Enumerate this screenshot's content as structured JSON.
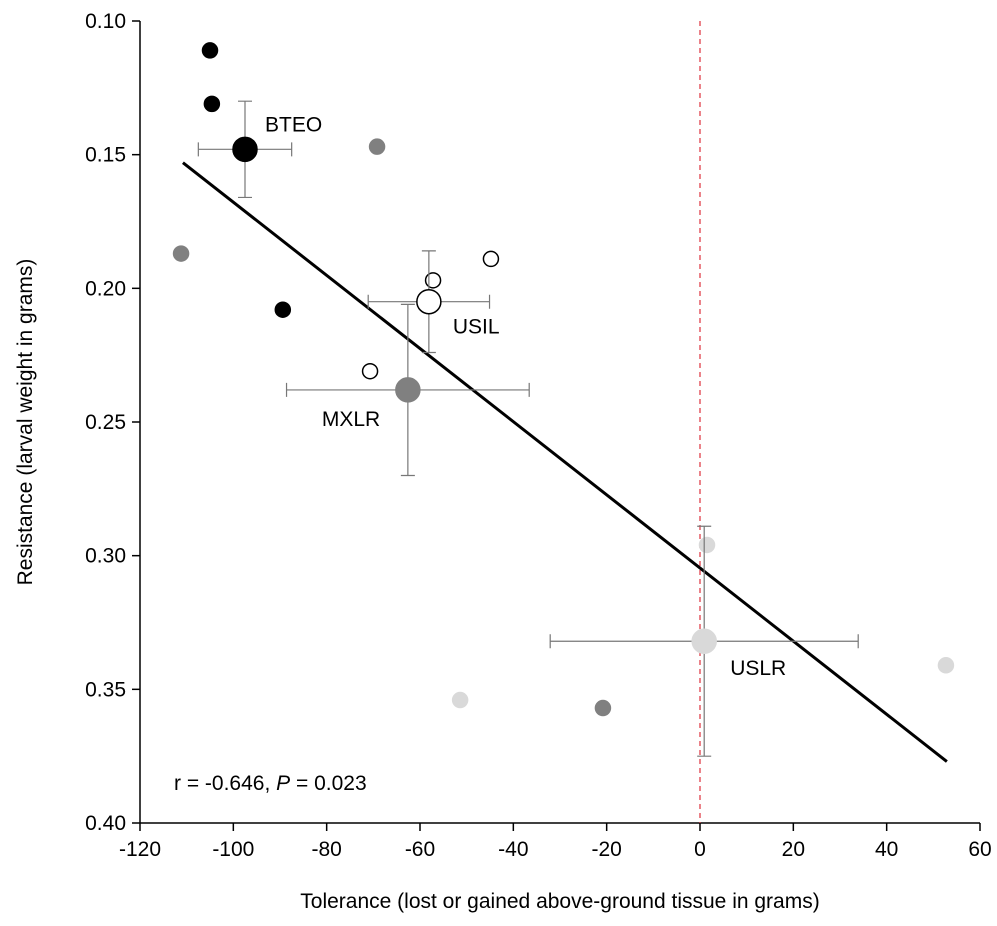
{
  "chart_data": {
    "type": "scatter",
    "xlabel": "Tolerance (lost or gained above-ground tissue in grams)",
    "ylabel": "Resistance (larval weight in grams)",
    "xlim": [
      -120,
      60
    ],
    "xticks": [
      -120,
      -100,
      -80,
      -60,
      -40,
      -20,
      0,
      20,
      40,
      60
    ],
    "ylim": [
      0.1,
      0.4
    ],
    "y_inverted": true,
    "yticks": [
      {
        "value": 0.1,
        "label": "0.10"
      },
      0.15,
      {
        "value": 0.2,
        "label": "0.20"
      },
      0.25,
      {
        "value": 0.3,
        "label": "0.30"
      },
      0.35,
      {
        "value": 0.4,
        "label": "0.40"
      }
    ],
    "series": [
      {
        "color": "#000000",
        "x": [
          -105,
          -104.6,
          -89.4
        ],
        "values": [
          0.111,
          0.131,
          0.208
        ]
      },
      {
        "color": "#808080",
        "x": [
          -69.2,
          -111.2,
          -20.8
        ],
        "values": [
          0.147,
          0.187,
          0.357
        ]
      },
      {
        "color": "#ffffff",
        "x": [
          -57.2,
          -44.8,
          -70.7
        ],
        "values": [
          0.197,
          0.189,
          0.231
        ]
      },
      {
        "color": "#d9d9d9",
        "x": [
          1.5,
          -51.4,
          52.7
        ],
        "values": [
          0.296,
          0.354,
          0.341
        ]
      }
    ],
    "means": [
      {
        "label": "BTEO",
        "color": "#000000",
        "x": -97.5,
        "y": 0.148,
        "xerr": 10,
        "yerr": 0.018
      },
      {
        "label": "MXLR",
        "color": "#808080",
        "x": -62.6,
        "y": 0.238,
        "xerr": 26,
        "yerr": 0.032
      },
      {
        "label": "USIL",
        "color": "#ffffff",
        "x": -58.1,
        "y": 0.205,
        "xerr": 13,
        "yerr": 0.019
      },
      {
        "label": "USLR",
        "color": "#d9d9d9",
        "x": 0.9,
        "y": 0.332,
        "xerr": 33,
        "yerr": 0.043
      }
    ],
    "fit": {
      "x": [
        -110.8,
        52.9
      ],
      "y": [
        0.153,
        0.377
      ],
      "color": "#000000"
    },
    "vline": {
      "x": 0,
      "color": "#e0404a"
    },
    "annotation": {
      "prefix": "r = -0.646, ",
      "italic": "P",
      "suffix": " = 0.023"
    }
  }
}
